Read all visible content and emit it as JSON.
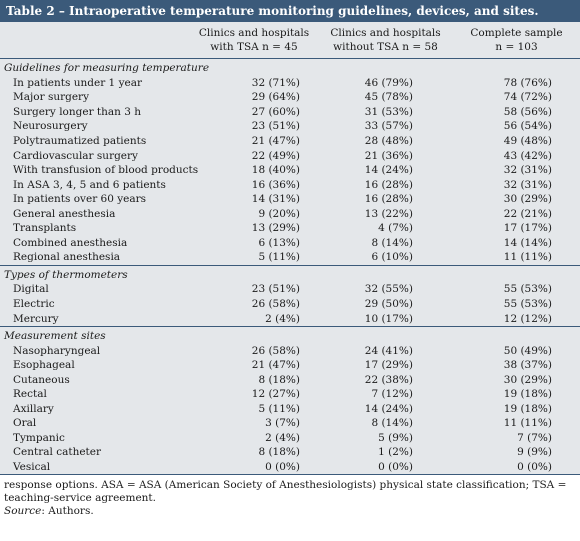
{
  "title": "Table 2 – Intraoperative temperature monitoring guidelines, devices, and sites.",
  "columns": [
    {
      "line1": "Clinics and hospitals",
      "line2": "with TSA n = 45"
    },
    {
      "line1": "Clinics and hospitals",
      "line2": "without TSA n = 58"
    },
    {
      "line1": "Complete sample",
      "line2": "n = 103"
    }
  ],
  "sections": [
    {
      "title": "Guidelines for measuring temperature",
      "rows": [
        {
          "label": "In patients under 1 year",
          "v": [
            "32 (71%)",
            "46 (79%)",
            "78 (76%)"
          ]
        },
        {
          "label": "Major surgery",
          "v": [
            "29 (64%)",
            "45 (78%)",
            "74 (72%)"
          ]
        },
        {
          "label": "Surgery longer than 3 h",
          "v": [
            "27 (60%)",
            "31 (53%)",
            "58 (56%)"
          ]
        },
        {
          "label": "Neurosurgery",
          "v": [
            "23 (51%)",
            "33 (57%)",
            "56 (54%)"
          ]
        },
        {
          "label": "Polytraumatized patients",
          "v": [
            "21 (47%)",
            "28 (48%)",
            "49 (48%)"
          ]
        },
        {
          "label": "Cardiovascular surgery",
          "v": [
            "22 (49%)",
            "21 (36%)",
            "43 (42%)"
          ]
        },
        {
          "label": "With transfusion of blood products",
          "v": [
            "18 (40%)",
            "14 (24%)",
            "32 (31%)"
          ]
        },
        {
          "label": "In ASA 3, 4, 5 and 6 patients",
          "v": [
            "16 (36%)",
            "16 (28%)",
            "32 (31%)"
          ]
        },
        {
          "label": "In patients over 60 years",
          "v": [
            "14 (31%)",
            "16 (28%)",
            "30 (29%)"
          ]
        },
        {
          "label": "General anesthesia",
          "v": [
            "9 (20%)",
            "13 (22%)",
            "22 (21%)"
          ]
        },
        {
          "label": "Transplants",
          "v": [
            "13 (29%)",
            "4 (7%)",
            "17 (17%)"
          ]
        },
        {
          "label": "Combined anesthesia",
          "v": [
            "6 (13%)",
            "8 (14%)",
            "14 (14%)"
          ]
        },
        {
          "label": "Regional anesthesia",
          "v": [
            "5 (11%)",
            "6 (10%)",
            "11 (11%)"
          ]
        }
      ]
    },
    {
      "title": "Types of thermometers",
      "rows": [
        {
          "label": "Digital",
          "v": [
            "23 (51%)",
            "32 (55%)",
            "55 (53%)"
          ]
        },
        {
          "label": "Electric",
          "v": [
            "26 (58%)",
            "29 (50%)",
            "55 (53%)"
          ]
        },
        {
          "label": "Mercury",
          "v": [
            "2 (4%)",
            "10 (17%)",
            "12 (12%)"
          ]
        }
      ]
    },
    {
      "title": "Measurement sites",
      "rows": [
        {
          "label": "Nasopharyngeal",
          "v": [
            "26 (58%)",
            "24 (41%)",
            "50 (49%)"
          ]
        },
        {
          "label": "Esophageal",
          "v": [
            "21 (47%)",
            "17 (29%)",
            "38 (37%)"
          ]
        },
        {
          "label": "Cutaneous",
          "v": [
            "8 (18%)",
            "22 (38%)",
            "30 (29%)"
          ]
        },
        {
          "label": "Rectal",
          "v": [
            "12 (27%)",
            "7 (12%)",
            "19 (18%)"
          ]
        },
        {
          "label": "Axillary",
          "v": [
            "5 (11%)",
            "14 (24%)",
            "19 (18%)"
          ]
        },
        {
          "label": "Oral",
          "v": [
            "3 (7%)",
            "8 (14%)",
            "11 (11%)"
          ]
        },
        {
          "label": "Tympanic",
          "v": [
            "2 (4%)",
            "5 (9%)",
            "7 (7%)"
          ]
        },
        {
          "label": "Central catheter",
          "v": [
            "8 (18%)",
            "1 (2%)",
            "9 (9%)"
          ]
        },
        {
          "label": "Vesical",
          "v": [
            "0 (0%)",
            "0 (0%)",
            "0 (0%)"
          ]
        }
      ]
    }
  ],
  "footnote": "response options.  ASA = ASA (American Society of Anesthesiologists) physical state classification; TSA = teaching-service agreement.",
  "source_label": "Source",
  "source_text": ": Authors."
}
